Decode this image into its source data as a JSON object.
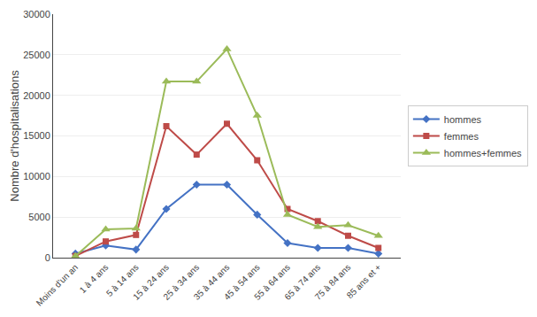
{
  "chart_data": {
    "type": "line",
    "categories": [
      "Moins d'un an",
      "1 à 4 ans",
      "5 à 14 ans",
      "15 à 24 ans",
      "25 à 34 ans",
      "35 à 44 ans",
      "45 à 54 ans",
      "55 à 64 ans",
      "65 à 74 ans",
      "75 à 84 ans",
      "85 ans et +"
    ],
    "series": [
      {
        "name": "hommes",
        "color": "#4472C4",
        "marker": "diamond",
        "values": [
          500,
          1500,
          1000,
          6000,
          9000,
          9000,
          5300,
          1800,
          1200,
          1200,
          500
        ]
      },
      {
        "name": "femmes",
        "color": "#BE4B48",
        "marker": "square",
        "values": [
          200,
          2000,
          2800,
          16200,
          12700,
          16500,
          12000,
          6000,
          4500,
          2700,
          1200
        ]
      },
      {
        "name": "hommes+femmes",
        "color": "#9BBB59",
        "marker": "triangle-up",
        "values": [
          200,
          3500,
          3600,
          21700,
          21700,
          25700,
          17500,
          5300,
          3800,
          4000,
          2700
        ]
      }
    ],
    "y_label": "Nombre d'hospitalisations",
    "ylim": [
      0,
      30000
    ],
    "yticks": [
      0,
      5000,
      10000,
      15000,
      20000,
      25000,
      30000
    ],
    "grid": true,
    "legend": "right"
  }
}
